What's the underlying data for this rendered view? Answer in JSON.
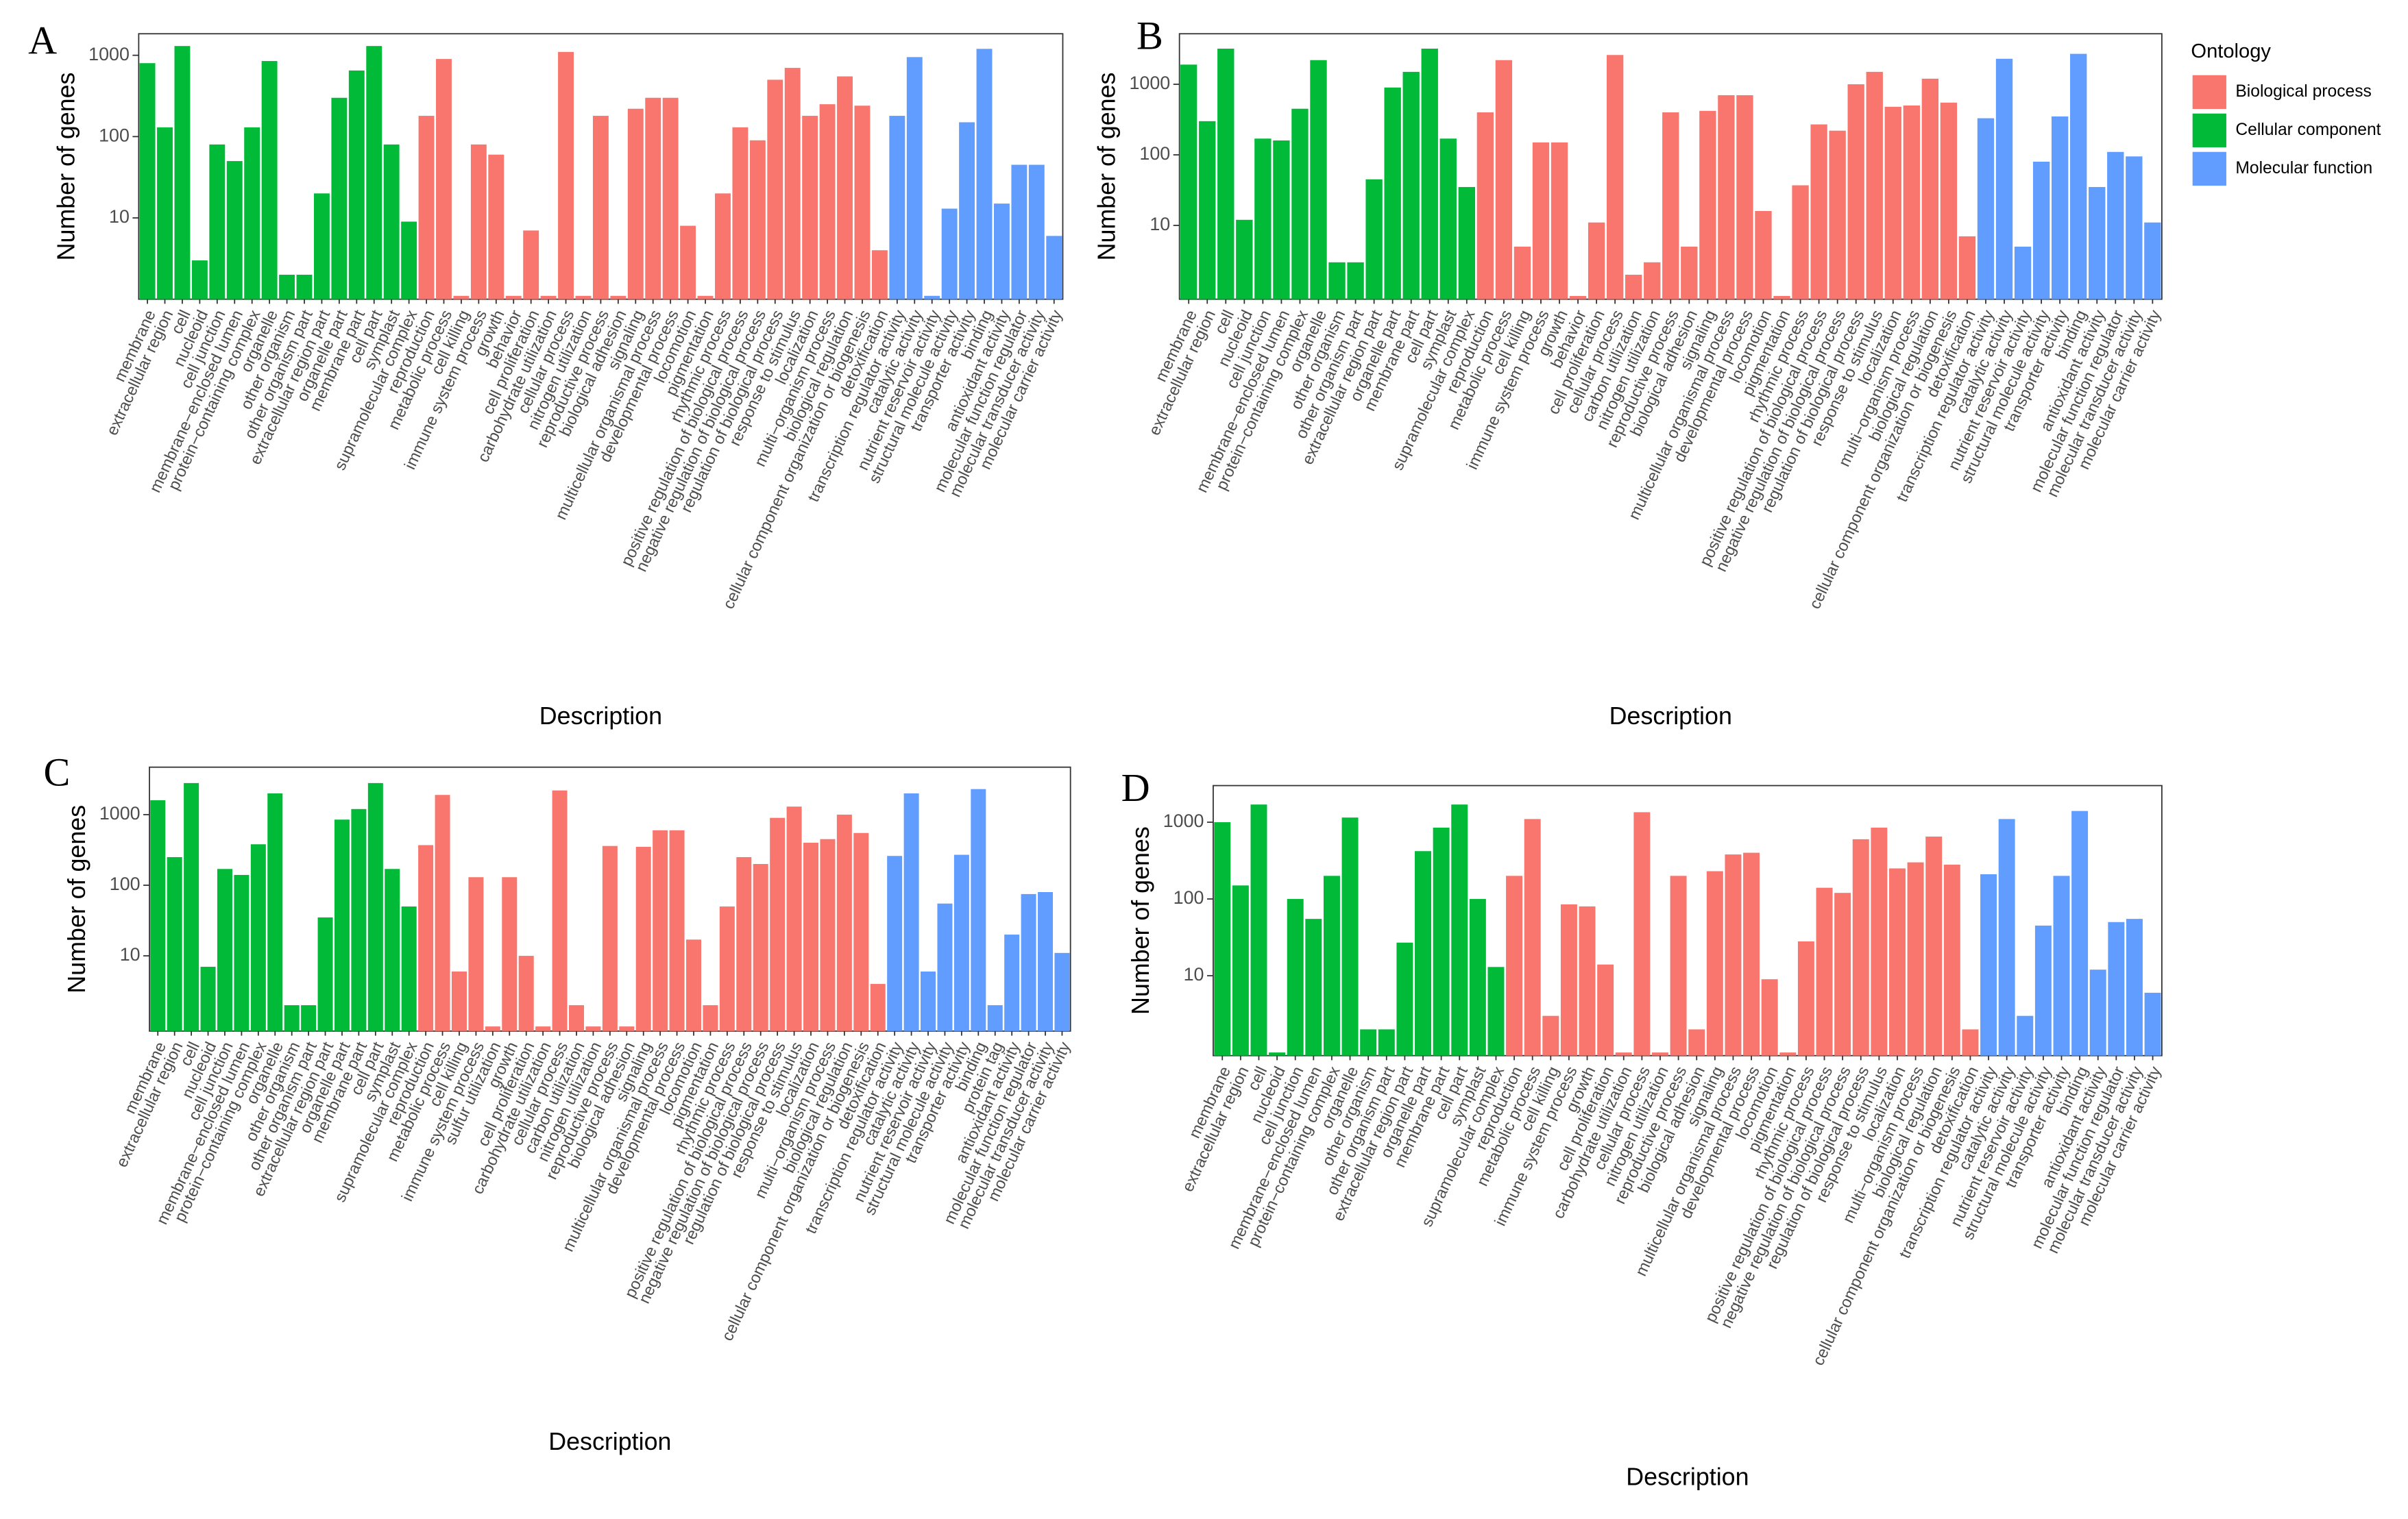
{
  "chart_data": [
    {
      "type": "bar",
      "panel": "A",
      "xlabel": "Description",
      "ylabel": "Number of genes",
      "log_scale": true,
      "ylim": [
        1,
        1840
      ],
      "yticks": [
        10,
        100,
        1000
      ],
      "series": [
        {
          "name": "Cellular component",
          "color": "#00BA38",
          "categories": [
            "membrane",
            "extracellular region",
            "cell",
            "nucleoid",
            "cell junction",
            "membrane−enclosed lumen",
            "protein−containing complex",
            "organelle",
            "other organism",
            "other organism part",
            "extracellular region part",
            "organelle part",
            "membrane part",
            "cell part",
            "symplast",
            "supramolecular complex"
          ],
          "values": [
            800,
            130,
            1300,
            3,
            80,
            50,
            130,
            850,
            2,
            2,
            20,
            300,
            650,
            1300,
            80,
            9
          ]
        },
        {
          "name": "Biological process",
          "color": "#F8766D",
          "categories": [
            "reproduction",
            "metabolic process",
            "cell killing",
            "immune system process",
            "growth",
            "behavior",
            "cell proliferation",
            "carbohydrate utilization",
            "cellular process",
            "nitrogen utilization",
            "reproductive process",
            "biological adhesion",
            "signaling",
            "multicellular organismal process",
            "developmental process",
            "locomotion",
            "pigmentation",
            "rhythmic process",
            "positive regulation of biological process",
            "negative regulation of biological process",
            "regulation of biological process",
            "response to stimulus",
            "localization",
            "multi−organism process",
            "biological regulation",
            "cellular component organization or biogenesis",
            "detoxification"
          ],
          "values": [
            180,
            900,
            1.1,
            80,
            60,
            1.1,
            7,
            1.1,
            1100,
            1.1,
            180,
            1.1,
            220,
            300,
            300,
            8,
            1.1,
            20,
            130,
            90,
            500,
            700,
            180,
            250,
            550,
            240,
            4
          ]
        },
        {
          "name": "Molecular function",
          "color": "#619CFF",
          "categories": [
            "transcription regulator activity",
            "catalytic activity",
            "nutrient reservoir activity",
            "structural molecule activity",
            "transporter activity",
            "binding",
            "antioxidant activity",
            "molecular function regulator",
            "molecular transducer activity",
            "molecular carrier activity"
          ],
          "values": [
            180,
            950,
            1.1,
            13,
            150,
            1200,
            15,
            45,
            45,
            6
          ]
        }
      ]
    },
    {
      "type": "bar",
      "panel": "B",
      "xlabel": "Description",
      "ylabel": "Number of genes",
      "log_scale": true,
      "legend_title": "Ontology",
      "ylim": [
        0.9,
        5200
      ],
      "yticks": [
        10,
        100,
        1000
      ],
      "series": [
        {
          "name": "Cellular component",
          "color": "#00BA38",
          "categories": [
            "membrane",
            "extracellular region",
            "cell",
            "nucleoid",
            "cell junction",
            "membrane−enclosed lumen",
            "protein−containing complex",
            "organelle",
            "other organism",
            "other organism part",
            "extracellular region part",
            "organelle part",
            "membrane part",
            "cell part",
            "symplast",
            "supramolecular complex"
          ],
          "values": [
            1900,
            300,
            3200,
            12,
            170,
            160,
            450,
            2200,
            3,
            3,
            45,
            900,
            1500,
            3200,
            170,
            35
          ]
        },
        {
          "name": "Biological process",
          "color": "#F8766D",
          "categories": [
            "reproduction",
            "metabolic process",
            "cell killing",
            "immune system process",
            "growth",
            "behavior",
            "cell proliferation",
            "cellular process",
            "carbon utilization",
            "nitrogen utilization",
            "reproductive process",
            "biological adhesion",
            "signaling",
            "multicellular organismal process",
            "developmental process",
            "locomotion",
            "pigmentation",
            "rhythmic process",
            "positive regulation of biological process",
            "negative regulation of biological process",
            "regulation of biological process",
            "response to stimulus",
            "localization",
            "multi−organism process",
            "biological regulation",
            "cellular component organization or biogenesis",
            "detoxification"
          ],
          "values": [
            400,
            2200,
            5,
            150,
            150,
            1,
            11,
            2600,
            2,
            3,
            400,
            5,
            420,
            700,
            700,
            16,
            1,
            37,
            270,
            220,
            1000,
            1500,
            480,
            500,
            1200,
            550,
            7
          ]
        },
        {
          "name": "Molecular function",
          "color": "#619CFF",
          "categories": [
            "transcription regulator activity",
            "catalytic activity",
            "nutrient reservoir activity",
            "structural molecule activity",
            "transporter activity",
            "binding",
            "antioxidant activity",
            "molecular function regulator",
            "molecular transducer activity",
            "molecular carrier activity"
          ],
          "values": [
            330,
            2300,
            5,
            80,
            350,
            2700,
            35,
            110,
            95,
            11
          ]
        }
      ]
    },
    {
      "type": "bar",
      "panel": "C",
      "xlabel": "Description",
      "ylabel": "Number of genes",
      "log_scale": true,
      "ylim": [
        0.86,
        4700
      ],
      "yticks": [
        10,
        100,
        1000
      ],
      "series": [
        {
          "name": "Cellular component",
          "color": "#00BA38",
          "categories": [
            "membrane",
            "extracellular region",
            "cell",
            "nucleoid",
            "cell junction",
            "membrane−enclosed lumen",
            "protein−containing complex",
            "organelle",
            "other organism",
            "other organism part",
            "extracellular region part",
            "organelle part",
            "membrane part",
            "cell part",
            "symplast",
            "supramolecular complex"
          ],
          "values": [
            1600,
            250,
            2800,
            7,
            170,
            140,
            380,
            2000,
            2,
            2,
            35,
            850,
            1200,
            2800,
            170,
            50
          ]
        },
        {
          "name": "Biological process",
          "color": "#F8766D",
          "categories": [
            "reproduction",
            "metabolic process",
            "cell killing",
            "immune system process",
            "sulfur utilization",
            "growth",
            "cell proliferation",
            "carbohydrate utilization",
            "cellular process",
            "carbon utilization",
            "nitrogen utilization",
            "reproductive process",
            "biological adhesion",
            "signaling",
            "multicellular organismal process",
            "developmental process",
            "locomotion",
            "pigmentation",
            "rhythmic process",
            "positive regulation of biological process",
            "negative regulation of biological process",
            "regulation of biological process",
            "response to stimulus",
            "localization",
            "multi−organism process",
            "biological regulation",
            "cellular component organization or biogenesis",
            "detoxification"
          ],
          "values": [
            370,
            1900,
            6,
            130,
            1,
            130,
            10,
            1,
            2200,
            2,
            1,
            360,
            1,
            350,
            600,
            600,
            17,
            2,
            50,
            250,
            200,
            900,
            1300,
            400,
            450,
            1000,
            550,
            4
          ]
        },
        {
          "name": "Molecular function",
          "color": "#619CFF",
          "categories": [
            "transcription regulator activity",
            "catalytic activity",
            "nutrient reservoir activity",
            "structural molecule activity",
            "transporter activity",
            "binding",
            "protein tag",
            "antioxidant activity",
            "molecular function regulator",
            "molecular transducer activity",
            "molecular carrier activity"
          ],
          "values": [
            260,
            2000,
            6,
            55,
            270,
            2300,
            2,
            20,
            75,
            80,
            11
          ]
        }
      ]
    },
    {
      "type": "bar",
      "panel": "D",
      "xlabel": "Description",
      "ylabel": "Number of genes",
      "log_scale": true,
      "ylim": [
        0.91,
        3000
      ],
      "yticks": [
        10,
        100,
        1000
      ],
      "series": [
        {
          "name": "Cellular component",
          "color": "#00BA38",
          "categories": [
            "membrane",
            "extracellular region",
            "cell",
            "nucleoid",
            "cell junction",
            "membrane−enclosed lumen",
            "protein−containing complex",
            "organelle",
            "other organism",
            "other organism part",
            "extracellular region part",
            "organelle part",
            "membrane part",
            "cell part",
            "symplast",
            "supramolecular complex"
          ],
          "values": [
            1000,
            150,
            1700,
            1,
            100,
            55,
            200,
            1150,
            2,
            2,
            27,
            420,
            850,
            1700,
            100,
            13
          ]
        },
        {
          "name": "Biological process",
          "color": "#F8766D",
          "categories": [
            "reproduction",
            "metabolic process",
            "cell killing",
            "immune system process",
            "growth",
            "cell proliferation",
            "carbohydrate utilization",
            "cellular process",
            "nitrogen utilization",
            "reproductive process",
            "biological adhesion",
            "signaling",
            "multicellular organismal process",
            "developmental process",
            "locomotion",
            "pigmentation",
            "rhythmic process",
            "positive regulation of biological process",
            "negative regulation of biological process",
            "regulation of biological process",
            "response to stimulus",
            "localization",
            "multi−organism process",
            "biological regulation",
            "cellular component organization or biogenesis",
            "detoxification"
          ],
          "values": [
            200,
            1100,
            3,
            85,
            80,
            14,
            1,
            1350,
            1,
            200,
            2,
            230,
            380,
            400,
            9,
            1,
            28,
            140,
            120,
            600,
            850,
            250,
            300,
            650,
            280,
            2
          ]
        },
        {
          "name": "Molecular function",
          "color": "#619CFF",
          "categories": [
            "transcription regulator activity",
            "catalytic activity",
            "nutrient reservoir activity",
            "structural molecule activity",
            "transporter activity",
            "binding",
            "antioxidant activity",
            "molecular function regulator",
            "molecular transducer activity",
            "molecular carrier activity"
          ],
          "values": [
            210,
            1100,
            3,
            45,
            200,
            1400,
            12,
            50,
            55,
            6
          ]
        }
      ]
    }
  ]
}
